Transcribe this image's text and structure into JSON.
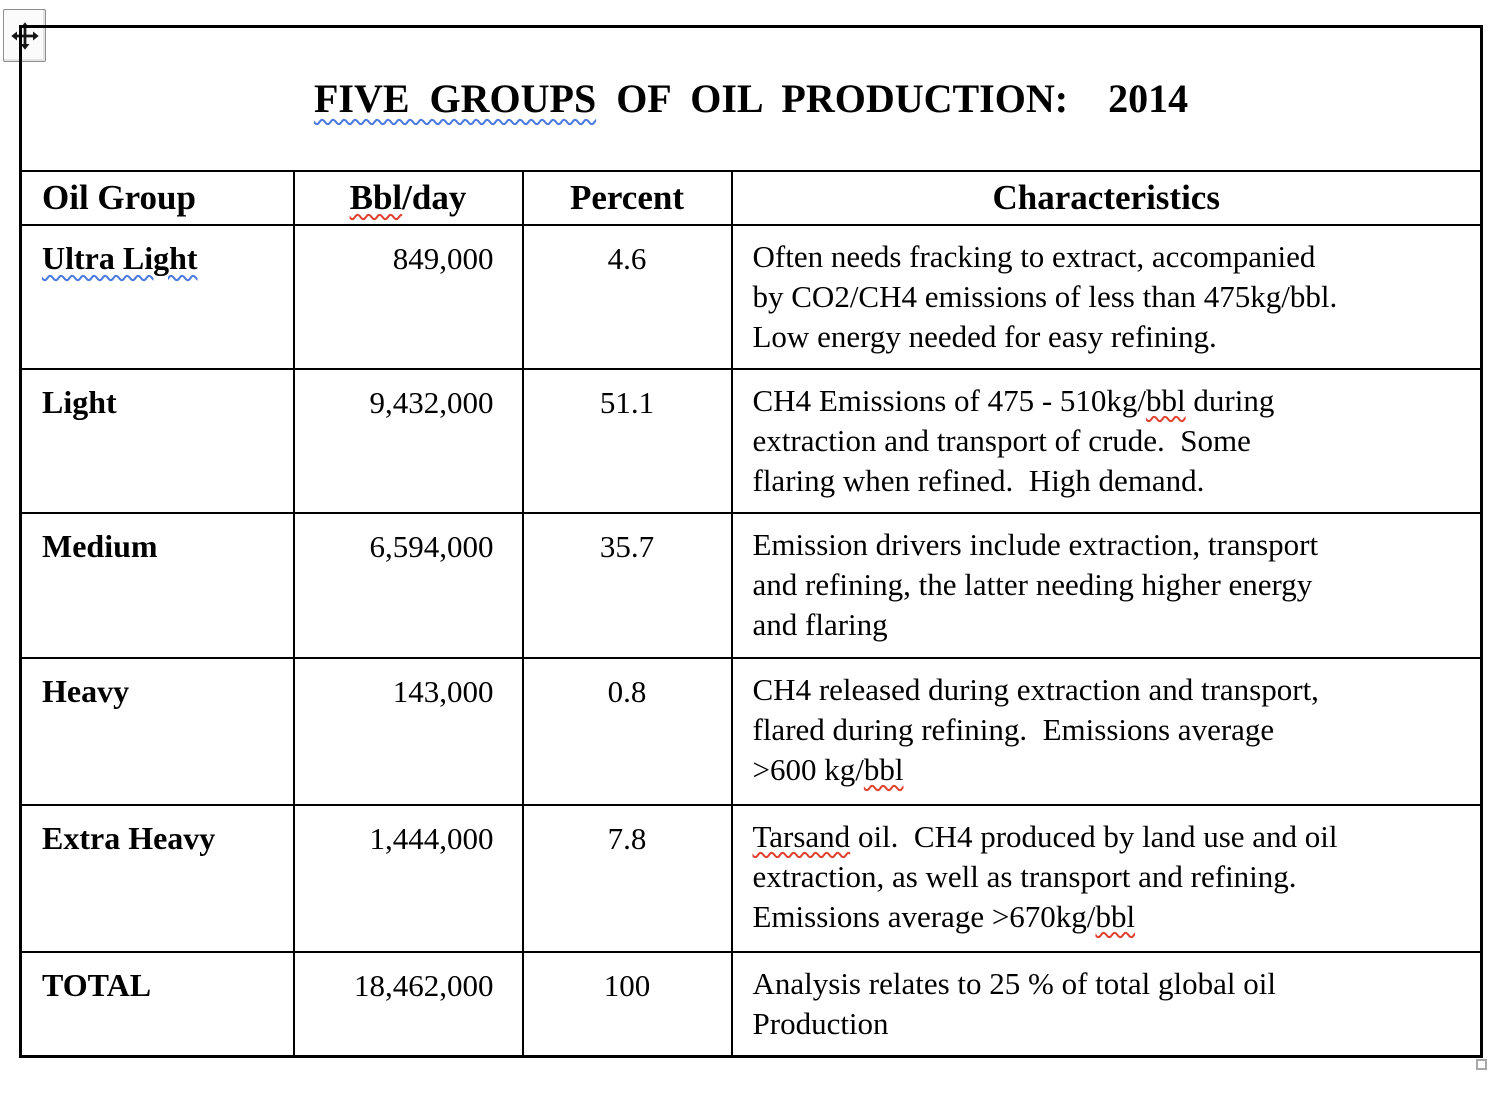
{
  "colors": {
    "squiggle_blue": "#4a79df",
    "squiggle_red": "#e0412e",
    "table_border": "#000000",
    "handle_border": "#a8a8a8",
    "background": "#ffffff"
  },
  "icons": {
    "move_handle": "move-arrows-icon",
    "resize_handle": "resize-square"
  },
  "title": {
    "segments": [
      {
        "text": "FIVE GROUPS",
        "mark": "blue"
      },
      {
        "text": " OF OIL PRODUCTION:  2014",
        "mark": null
      }
    ]
  },
  "table": {
    "headers": {
      "oil_group": [
        {
          "text": "Oil Group",
          "mark": null
        }
      ],
      "bbl_day": [
        {
          "text": "Bbl",
          "mark": "red"
        },
        {
          "text": "/day",
          "mark": null
        }
      ],
      "percent": [
        {
          "text": "Percent",
          "mark": null
        }
      ],
      "characteristics": [
        {
          "text": "Characteristics",
          "mark": null
        }
      ]
    },
    "rows": [
      {
        "group": [
          {
            "text": "Ultra Light",
            "mark": "blue"
          }
        ],
        "bbl_day": "849,000",
        "percent": "4.6",
        "characteristics": [
          {
            "text": "Often needs fracking to extract, accompanied\nby CO2/CH4 emissions of less than 475kg/bbl.\nLow energy needed for easy refining.",
            "mark": null
          }
        ]
      },
      {
        "group": [
          {
            "text": "Light",
            "mark": null
          }
        ],
        "bbl_day": "9,432,000",
        "percent": "51.1",
        "characteristics": [
          {
            "text": "CH4 Emissions of 475 - 510kg/",
            "mark": null
          },
          {
            "text": "bbl",
            "mark": "red"
          },
          {
            "text": " during\nextraction and transport of crude.  Some\nflaring when refined.  High demand.",
            "mark": null
          }
        ]
      },
      {
        "group": [
          {
            "text": "Medium",
            "mark": null
          }
        ],
        "bbl_day": "6,594,000",
        "percent": "35.7",
        "characteristics": [
          {
            "text": "Emission drivers include extraction, transport\nand refining, the latter needing higher energy\nand flaring",
            "mark": null
          }
        ]
      },
      {
        "group": [
          {
            "text": "Heavy",
            "mark": null
          }
        ],
        "bbl_day": "143,000",
        "percent": "0.8",
        "characteristics": [
          {
            "text": "CH4 released during extraction and transport,\nflared during refining.  Emissions average\n>600 kg/",
            "mark": null
          },
          {
            "text": "bbl",
            "mark": "red"
          }
        ]
      },
      {
        "group": [
          {
            "text": "Extra Heavy",
            "mark": null
          }
        ],
        "bbl_day": "1,444,000",
        "percent": "7.8",
        "characteristics": [
          {
            "text": "Tarsand",
            "mark": "red"
          },
          {
            "text": " oil.  CH4 produced by land use and oil\nextraction, as well as transport and refining.\nEmissions average >670kg/",
            "mark": null
          },
          {
            "text": "bbl",
            "mark": "red"
          }
        ]
      },
      {
        "group": [
          {
            "text": "TOTAL",
            "mark": null
          }
        ],
        "bbl_day": "18,462,000",
        "percent": "100",
        "characteristics": [
          {
            "text": "Analysis relates to 25 % of total global oil\nProduction",
            "mark": null
          }
        ]
      }
    ]
  }
}
